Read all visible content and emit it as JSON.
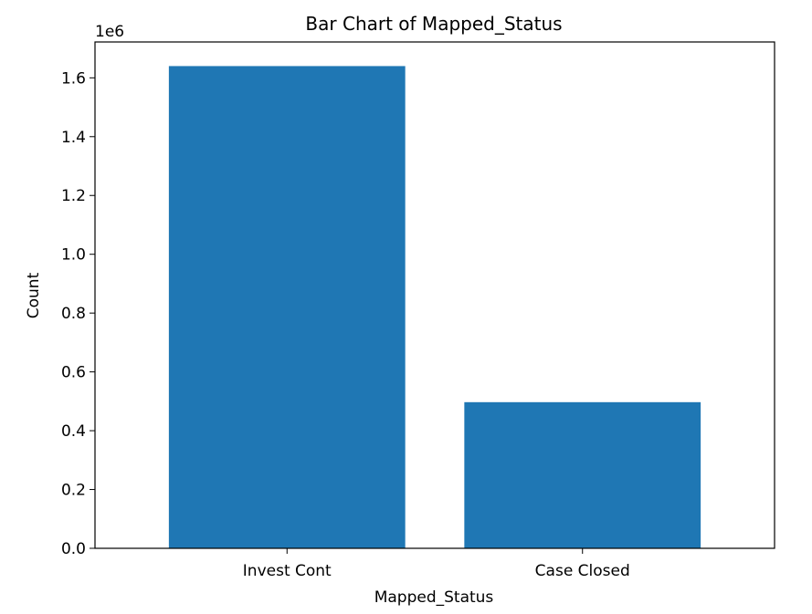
{
  "chart_data": {
    "type": "bar",
    "title": "Bar Chart of Mapped_Status",
    "xlabel": "Mapped_Status",
    "ylabel": "Count",
    "y_multiplier_label": "1e6",
    "categories": [
      "Invest Cont",
      "Case Closed"
    ],
    "values": [
      1640000,
      497000
    ],
    "ylim": [
      0,
      1722000
    ],
    "yticks": [
      0,
      200000,
      400000,
      600000,
      800000,
      1000000,
      1200000,
      1400000,
      1600000
    ],
    "ytick_labels": [
      "0.0",
      "0.2",
      "0.4",
      "0.6",
      "0.8",
      "1.0",
      "1.2",
      "1.4",
      "1.6"
    ],
    "bar_color": "#1f77b4",
    "grid": false,
    "legend": "none"
  }
}
